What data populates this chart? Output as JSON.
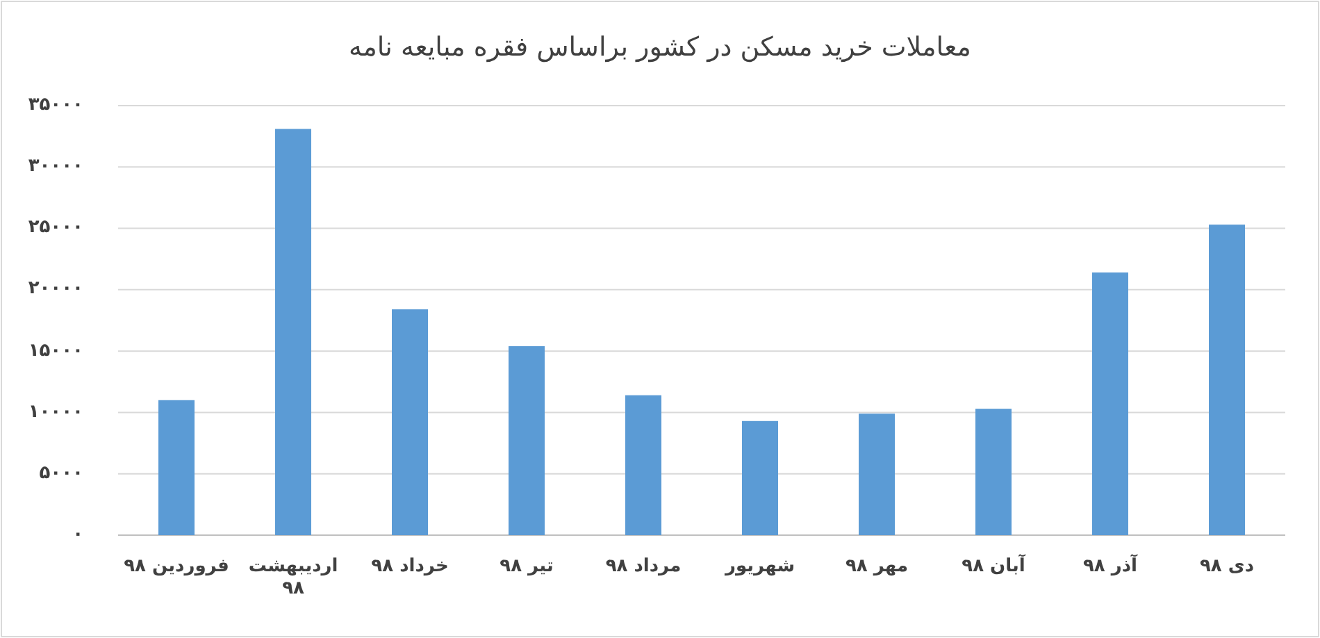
{
  "chart_data": {
    "type": "bar",
    "title": "معاملات خرید مسکن در کشور براساس فقره مبایعه نامه",
    "categories": [
      "فروردین ۹۸",
      "اردیبهشت ۹۸",
      "خرداد ۹۸",
      "تیر ۹۸",
      "مرداد ۹۸",
      "شهریور",
      "مهر ۹۸",
      "آبان ۹۸",
      "آذر ۹۸",
      "دی ۹۸"
    ],
    "values": [
      11000,
      33100,
      18400,
      15400,
      11400,
      9300,
      9900,
      10300,
      21400,
      25300
    ],
    "color": "#5b9bd5",
    "ylim": [
      0,
      35000
    ],
    "yticks": [
      {
        "value": 0,
        "label": "۰"
      },
      {
        "value": 5000,
        "label": "۵۰۰۰"
      },
      {
        "value": 10000,
        "label": "۱۰۰۰۰"
      },
      {
        "value": 15000,
        "label": "۱۵۰۰۰"
      },
      {
        "value": 20000,
        "label": "۲۰۰۰۰"
      },
      {
        "value": 25000,
        "label": "۲۵۰۰۰"
      },
      {
        "value": 30000,
        "label": "۳۰۰۰۰"
      },
      {
        "value": 35000,
        "label": "۳۵۰۰۰"
      }
    ],
    "grid": "y"
  }
}
